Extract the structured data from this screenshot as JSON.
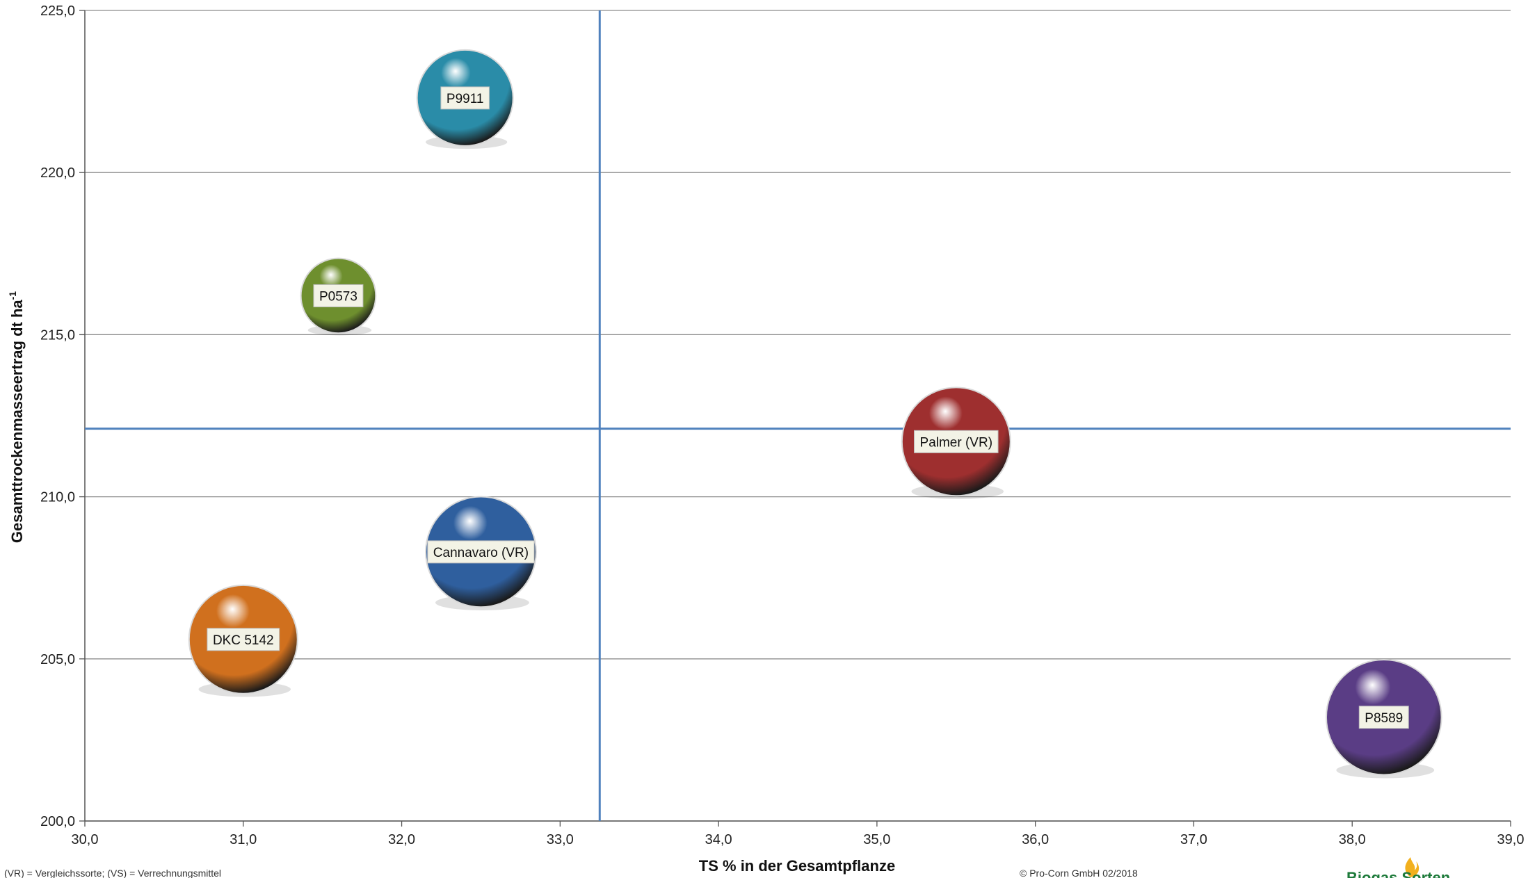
{
  "chart_data": {
    "type": "scatter",
    "title": "",
    "xlabel": "TS % in der Gesamtpflanze",
    "ylabel": "Gesamttrockenmasseertrag dt ha",
    "ylabel_superscript": "-1",
    "xlim": [
      30.0,
      39.0
    ],
    "ylim": [
      200.0,
      225.0
    ],
    "x_ticks": [
      "30,0",
      "31,0",
      "32,0",
      "33,0",
      "34,0",
      "35,0",
      "36,0",
      "37,0",
      "38,0",
      "39,0"
    ],
    "y_ticks": [
      "200,0",
      "205,0",
      "210,0",
      "215,0",
      "220,0",
      "225,0"
    ],
    "grid": "horizontal",
    "reference_lines": {
      "x_mean": 33.25,
      "y_mean": 212.1
    },
    "points": [
      {
        "label": "P9911",
        "x": 32.4,
        "y": 222.3,
        "size": 1.0,
        "color": "#2a8ca8"
      },
      {
        "label": "P0573",
        "x": 31.6,
        "y": 216.2,
        "size": 0.78,
        "color": "#6e8f2e"
      },
      {
        "label": "Palmer (VR)",
        "x": 35.5,
        "y": 211.7,
        "size": 1.13,
        "color": "#9e2f2f"
      },
      {
        "label": "Cannavaro (VR)",
        "x": 32.5,
        "y": 208.3,
        "size": 1.15,
        "color": "#2f5f9e"
      },
      {
        "label": "DKC 5142",
        "x": 31.0,
        "y": 205.6,
        "size": 1.13,
        "color": "#d0701e"
      },
      {
        "label": "P8589",
        "x": 38.2,
        "y": 203.2,
        "size": 1.2,
        "color": "#5a3d85"
      }
    ]
  },
  "footer": {
    "note": "(VR) = Vergleichssorte; (VS) = Verrechnungsmittel",
    "copyright": "© Pro-Corn GmbH 02/2018",
    "logo": "Biogas Sorten"
  }
}
